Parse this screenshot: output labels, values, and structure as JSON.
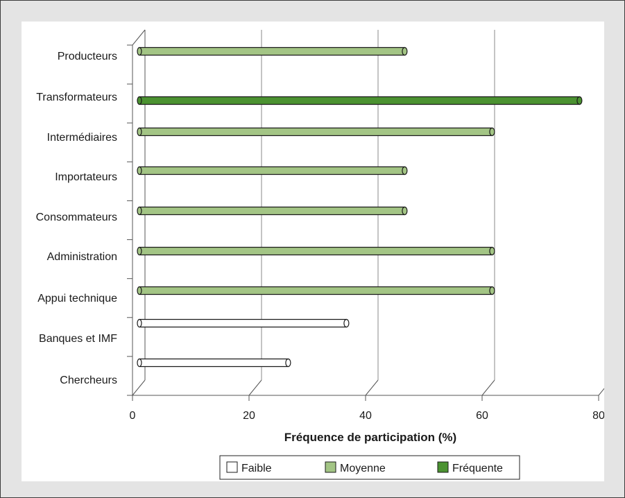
{
  "chart_data": {
    "type": "bar",
    "orientation": "horizontal",
    "categories": [
      "Producteurs",
      "Transformateurs",
      "Intermédiaires",
      "Importateurs",
      "Consommateurs",
      "Administration",
      "Appui technique",
      "Banques et IMF",
      "Chercheurs"
    ],
    "values": [
      46,
      76,
      61,
      46,
      46,
      61,
      61,
      36,
      26
    ],
    "levels": [
      "Moyenne",
      "Fréquente",
      "Moyenne",
      "Moyenne",
      "Moyenne",
      "Moyenne",
      "Moyenne",
      "Faible",
      "Faible"
    ],
    "xlabel": "Fréquence de participation (%)",
    "xlim": [
      0,
      80
    ],
    "xticks": [
      "0",
      "20",
      "40",
      "60",
      "80"
    ],
    "grid": "vertical",
    "legend": {
      "placement": "bottom",
      "items": [
        {
          "label": "Faible",
          "color": "#ffffff"
        },
        {
          "label": "Moyenne",
          "color": "#a3c585"
        },
        {
          "label": "Fréquente",
          "color": "#4b9231"
        }
      ]
    }
  }
}
